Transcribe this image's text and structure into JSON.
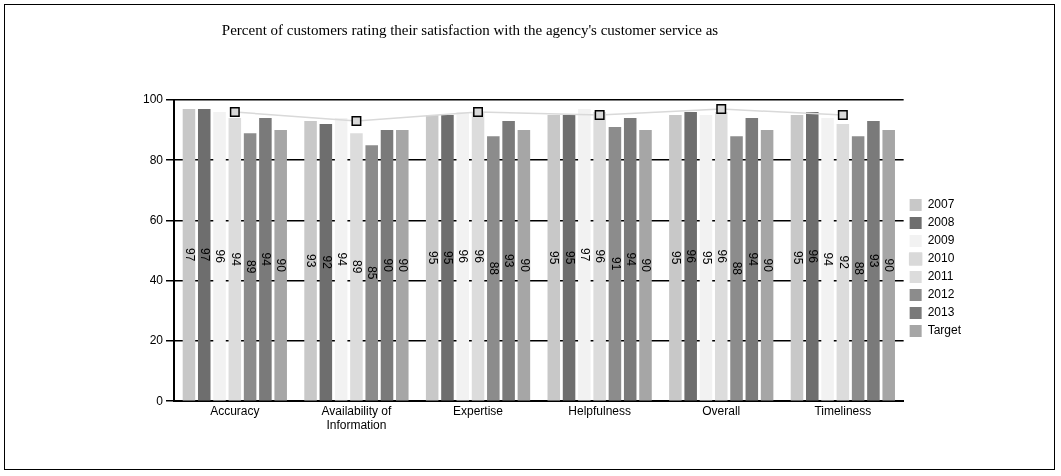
{
  "chart_data": {
    "type": "bar",
    "title": "Percent of customers rating their satisfaction with the agency's customer service as",
    "categories": [
      "Accuracy",
      "Availability of Information",
      "Expertise",
      "Helpfulness",
      "Overall",
      "Timeliness"
    ],
    "series": [
      {
        "name": "2007",
        "color": "#c8c8c8",
        "values": [
          97,
          93,
          95,
          95,
          95,
          95
        ],
        "value_labels": [
          "97",
          "93",
          "95",
          "95",
          "95",
          "95"
        ]
      },
      {
        "name": "2008",
        "color": "#6e6e6e",
        "values": [
          97,
          92,
          95,
          95,
          96,
          96
        ],
        "value_labels": [
          "97",
          "92",
          "95",
          "95",
          "96",
          "96"
        ]
      },
      {
        "name": "2009",
        "color": "#f2f2f2",
        "values": [
          96,
          94,
          96,
          97,
          95,
          94
        ],
        "value_labels": [
          "96",
          "94",
          "96",
          "97",
          "95",
          "94"
        ]
      },
      {
        "name": "2010",
        "type": "line",
        "marker": "square",
        "color": "#d9d9d9",
        "values": [
          96,
          93,
          96,
          95,
          97,
          95
        ]
      },
      {
        "name": "2011",
        "color": "#dcdcdc",
        "values": [
          94,
          89,
          96,
          96,
          96,
          92
        ],
        "value_labels": [
          "94",
          "89",
          "96",
          "96",
          "96",
          "92"
        ]
      },
      {
        "name": "2012",
        "color": "#8c8c8c",
        "values": [
          89,
          85,
          88,
          91,
          88,
          88
        ],
        "value_labels": [
          "89",
          "85",
          "88",
          "91",
          "88",
          "88"
        ]
      },
      {
        "name": "2013",
        "color": "#7a7a7a",
        "values": [
          94,
          90,
          93,
          94,
          94,
          93
        ],
        "value_labels": [
          "94",
          "90",
          "93",
          "94",
          "94",
          "93"
        ]
      },
      {
        "name": "Target",
        "color": "#a6a6a6",
        "values": [
          90,
          90,
          90,
          90,
          90,
          90
        ],
        "value_labels": [
          "90",
          "90",
          "90",
          "90",
          "90",
          "90"
        ]
      }
    ],
    "ylim": [
      0,
      100
    ],
    "yticks": [
      0,
      20,
      40,
      60,
      80,
      100
    ],
    "grid": "y",
    "legend": "right"
  }
}
